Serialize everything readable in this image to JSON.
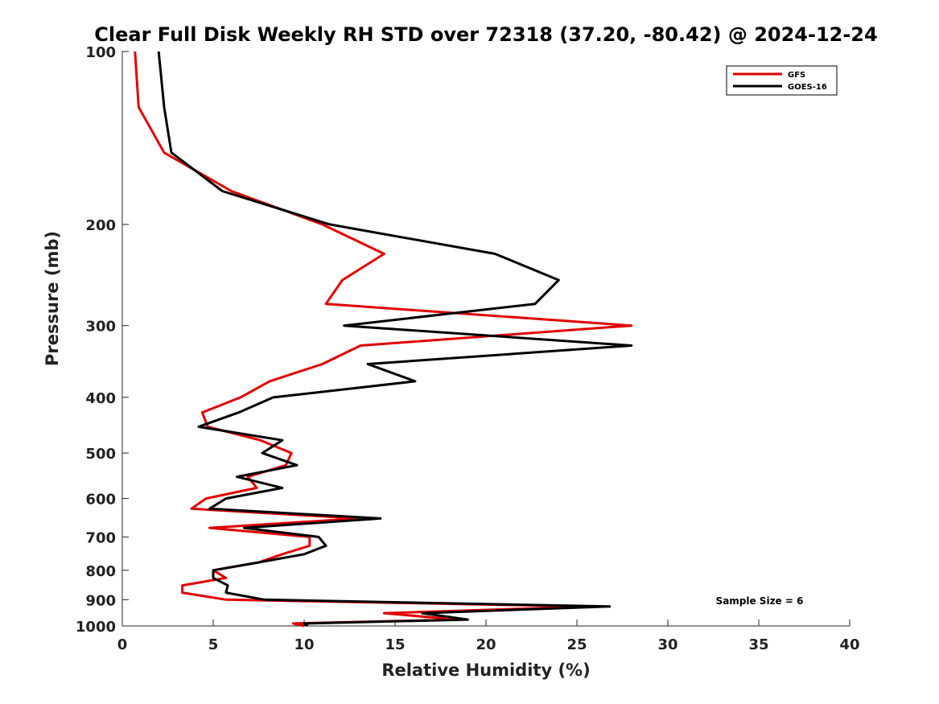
{
  "chart_data": {
    "type": "line",
    "title": "Clear Full Disk Weekly RH STD over 72318 (37.20, -80.42) @ 2024-12-24",
    "xlabel": "Relative Humidity (%)",
    "ylabel": "Pressure (mb)",
    "xlim": [
      0,
      40
    ],
    "ylim": [
      100,
      1000
    ],
    "yscale": "log",
    "y_reversed": true,
    "xticks": [
      0,
      5,
      10,
      15,
      20,
      25,
      30,
      35,
      40
    ],
    "yticks": [
      100,
      200,
      300,
      400,
      500,
      600,
      700,
      800,
      900,
      1000
    ],
    "grid": false,
    "legend_position": "top-right",
    "annotation": "Sample Size = 6",
    "series": [
      {
        "name": "GFS",
        "color": "#e00000",
        "points": [
          {
            "x": 0.7,
            "y": 100
          },
          {
            "x": 0.9,
            "y": 125
          },
          {
            "x": 2.3,
            "y": 150
          },
          {
            "x": 6.0,
            "y": 175
          },
          {
            "x": 11.0,
            "y": 200
          },
          {
            "x": 14.4,
            "y": 225
          },
          {
            "x": 12.1,
            "y": 250
          },
          {
            "x": 11.2,
            "y": 275
          },
          {
            "x": 28.0,
            "y": 300
          },
          {
            "x": 13.1,
            "y": 325
          },
          {
            "x": 11.0,
            "y": 350
          },
          {
            "x": 8.1,
            "y": 375
          },
          {
            "x": 6.5,
            "y": 400
          },
          {
            "x": 4.4,
            "y": 425
          },
          {
            "x": 4.7,
            "y": 450
          },
          {
            "x": 7.6,
            "y": 475
          },
          {
            "x": 9.3,
            "y": 500
          },
          {
            "x": 9.0,
            "y": 525
          },
          {
            "x": 6.9,
            "y": 550
          },
          {
            "x": 7.4,
            "y": 575
          },
          {
            "x": 4.6,
            "y": 600
          },
          {
            "x": 3.8,
            "y": 625
          },
          {
            "x": 13.0,
            "y": 650
          },
          {
            "x": 4.8,
            "y": 675
          },
          {
            "x": 10.3,
            "y": 700
          },
          {
            "x": 10.3,
            "y": 725
          },
          {
            "x": 8.8,
            "y": 750
          },
          {
            "x": 7.5,
            "y": 775
          },
          {
            "x": 5.0,
            "y": 800
          },
          {
            "x": 5.7,
            "y": 825
          },
          {
            "x": 3.3,
            "y": 850
          },
          {
            "x": 3.3,
            "y": 875
          },
          {
            "x": 5.7,
            "y": 900
          },
          {
            "x": 25.8,
            "y": 925
          },
          {
            "x": 14.4,
            "y": 950
          },
          {
            "x": 18.4,
            "y": 975
          },
          {
            "x": 9.4,
            "y": 990
          },
          {
            "x": 10.0,
            "y": 1000
          }
        ]
      },
      {
        "name": "GOES-16",
        "color": "#000000",
        "points": [
          {
            "x": 2.0,
            "y": 100
          },
          {
            "x": 2.3,
            "y": 125
          },
          {
            "x": 2.7,
            "y": 150
          },
          {
            "x": 5.5,
            "y": 175
          },
          {
            "x": 11.4,
            "y": 200
          },
          {
            "x": 20.5,
            "y": 225
          },
          {
            "x": 24.0,
            "y": 250
          },
          {
            "x": 22.7,
            "y": 275
          },
          {
            "x": 12.2,
            "y": 300
          },
          {
            "x": 28.0,
            "y": 325
          },
          {
            "x": 13.5,
            "y": 350
          },
          {
            "x": 16.1,
            "y": 375
          },
          {
            "x": 8.3,
            "y": 400
          },
          {
            "x": 6.4,
            "y": 425
          },
          {
            "x": 4.2,
            "y": 450
          },
          {
            "x": 8.8,
            "y": 475
          },
          {
            "x": 7.7,
            "y": 500
          },
          {
            "x": 9.6,
            "y": 525
          },
          {
            "x": 6.3,
            "y": 550
          },
          {
            "x": 8.8,
            "y": 575
          },
          {
            "x": 5.7,
            "y": 600
          },
          {
            "x": 4.8,
            "y": 625
          },
          {
            "x": 14.2,
            "y": 650
          },
          {
            "x": 6.7,
            "y": 675
          },
          {
            "x": 10.8,
            "y": 700
          },
          {
            "x": 11.2,
            "y": 725
          },
          {
            "x": 10.0,
            "y": 750
          },
          {
            "x": 7.5,
            "y": 775
          },
          {
            "x": 5.0,
            "y": 800
          },
          {
            "x": 5.0,
            "y": 825
          },
          {
            "x": 5.8,
            "y": 850
          },
          {
            "x": 5.7,
            "y": 875
          },
          {
            "x": 7.8,
            "y": 900
          },
          {
            "x": 26.8,
            "y": 925
          },
          {
            "x": 16.5,
            "y": 950
          },
          {
            "x": 19.0,
            "y": 975
          },
          {
            "x": 10.0,
            "y": 990
          },
          {
            "x": 10.2,
            "y": 1000
          }
        ]
      }
    ]
  }
}
